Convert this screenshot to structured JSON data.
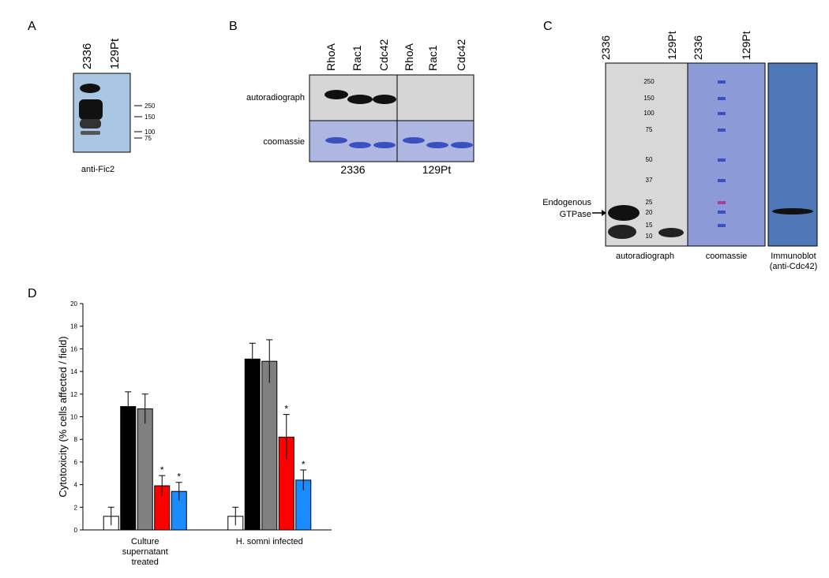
{
  "panels": {
    "A": {
      "label": "A",
      "lanes": [
        "2336",
        "129Pt"
      ],
      "markers": [
        "250",
        "150",
        "100",
        "75"
      ],
      "caption": "anti-Fic2"
    },
    "B": {
      "label": "B",
      "lanes": [
        "RhoA",
        "Rac1",
        "Cdc42",
        "RhoA",
        "Rac1",
        "Cdc42"
      ],
      "rows": [
        "autoradiograph",
        "coomassie"
      ],
      "groups": [
        "2336",
        "129Pt"
      ]
    },
    "C": {
      "label": "C",
      "lanes": [
        "2336",
        "129Pt",
        "2336",
        "129Pt"
      ],
      "markers": [
        "250",
        "150",
        "100",
        "75",
        "50",
        "37",
        "25",
        "20",
        "15",
        "10"
      ],
      "annotation": [
        "Endogenous",
        "GTPase"
      ],
      "captions": [
        "autoradiograph",
        "coomassie",
        "Immunoblot",
        "(anti-Cdc42)"
      ]
    },
    "D": {
      "label": "D"
    }
  },
  "chart_data": {
    "type": "bar",
    "y_label": "Cytotoxicity (% cells affected / field)",
    "categories": [
      "Culture supernatant treated",
      "H. somni infected"
    ],
    "series": [
      {
        "color": "#ffffff",
        "values": [
          1.2,
          1.2
        ],
        "errors": [
          0.8,
          0.8
        ]
      },
      {
        "color": "#000000",
        "values": [
          10.9,
          15.1
        ],
        "errors": [
          1.3,
          1.4
        ]
      },
      {
        "color": "#808080",
        "values": [
          10.7,
          14.9
        ],
        "errors": [
          1.3,
          1.9
        ]
      },
      {
        "color": "#ff0000",
        "values": [
          3.9,
          8.2
        ],
        "errors": [
          0.9,
          2.0
        ],
        "annotations": [
          "*",
          "*"
        ]
      },
      {
        "color": "#1a8cff",
        "values": [
          3.4,
          4.4
        ],
        "errors": [
          0.8,
          0.9
        ],
        "annotations": [
          "*",
          "*"
        ]
      }
    ],
    "ylim": [
      0,
      20
    ],
    "yticks": [
      0,
      2,
      4,
      6,
      8,
      10,
      12,
      14,
      16,
      18,
      20
    ],
    "grid": false
  }
}
